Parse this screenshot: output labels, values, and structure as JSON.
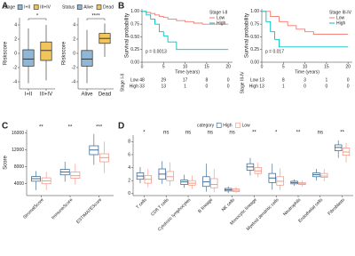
{
  "panel_labels": [
    "A",
    "B",
    "C",
    "D"
  ],
  "chart_data": [
    {
      "type": "box",
      "legend": "top",
      "legend_title": "Stage",
      "categories": [
        "I+II",
        "III+IV"
      ],
      "colors": [
        "#8fb8d8",
        "#f2c55c"
      ],
      "ylabel": "Riskscore",
      "ylim": [
        -5,
        5
      ],
      "yticks": [
        -4,
        -2,
        0,
        2,
        4
      ],
      "significance": [
        "*"
      ],
      "boxes": [
        {
          "min": -4.2,
          "q1": -1.8,
          "median": -0.8,
          "q3": 0.5,
          "max": 3.5
        },
        {
          "min": -3.8,
          "q1": -1,
          "median": 0.4,
          "q3": 1.6,
          "max": 4
        }
      ]
    },
    {
      "type": "box",
      "legend": "top",
      "legend_title": "Status",
      "categories": [
        "Alive",
        "Dead"
      ],
      "colors": [
        "#8fb8d8",
        "#f2c55c"
      ],
      "ylabel": "Riskscore",
      "ylim": [
        -5,
        5
      ],
      "yticks": [
        -4,
        -2,
        0,
        2,
        4
      ],
      "significance": [
        "****"
      ],
      "boxes": [
        {
          "min": -4.2,
          "q1": -1.8,
          "median": -0.8,
          "q3": 0.4,
          "max": 3.3
        },
        {
          "min": -0.5,
          "q1": 1.4,
          "median": 2.1,
          "q3": 2.8,
          "max": 4.2
        }
      ]
    },
    {
      "type": "km",
      "legend_title": "Stage I-II",
      "ylabel": "Survival probability",
      "xlabel": "Time (years)",
      "p_text": "p = 0.0013",
      "xlim": [
        0,
        21
      ],
      "xticks": [
        0,
        5,
        10,
        15,
        20
      ],
      "ylim": [
        0,
        1.05
      ],
      "yticks": [
        {
          "value": 0,
          "label": "0.00"
        },
        {
          "value": 0.25,
          "label": "0.25"
        },
        {
          "value": 0.5,
          "label": "0.50"
        },
        {
          "value": 0.75,
          "label": "0.75"
        },
        {
          "value": 1,
          "label": "1.00"
        }
      ],
      "series": [
        {
          "name": "Low",
          "color": "#f8766d",
          "x": [
            0,
            1,
            2,
            3,
            4,
            5,
            6,
            8,
            10,
            12,
            14,
            20
          ],
          "values": [
            1,
            0.98,
            0.96,
            0.93,
            0.9,
            0.88,
            0.85,
            0.82,
            0.8,
            0.77,
            0.75,
            0.75
          ],
          "at_risk": [
            48,
            29,
            17,
            8,
            0
          ]
        },
        {
          "name": "High",
          "color": "#00bfc4",
          "x": [
            0,
            1,
            2,
            3,
            4,
            5,
            6,
            8,
            20
          ],
          "values": [
            1,
            0.93,
            0.85,
            0.75,
            0.6,
            0.52,
            0.4,
            0.25,
            0.25
          ],
          "at_risk": [
            33,
            13,
            1,
            0,
            0
          ]
        }
      ]
    },
    {
      "type": "km",
      "legend_title": "Stage III-IV",
      "ylabel": "Survival probability",
      "xlabel": "Time (years)",
      "p_text": "p = 0.017",
      "xlim": [
        0,
        21
      ],
      "xticks": [
        0,
        5,
        10,
        15,
        20
      ],
      "ylim": [
        0,
        1.05
      ],
      "yticks": [
        {
          "value": 0,
          "label": "0.00"
        },
        {
          "value": 0.25,
          "label": "0.25"
        },
        {
          "value": 0.5,
          "label": "0.50"
        },
        {
          "value": 0.75,
          "label": "0.75"
        },
        {
          "value": 1,
          "label": "1.00"
        }
      ],
      "series": [
        {
          "name": "Low",
          "color": "#f8766d",
          "x": [
            0,
            2,
            4,
            6,
            8,
            10,
            12,
            20
          ],
          "values": [
            1,
            0.9,
            0.8,
            0.72,
            0.65,
            0.6,
            0.55,
            0.55
          ],
          "at_risk": [
            13,
            8,
            3,
            1,
            0
          ]
        },
        {
          "name": "High",
          "color": "#00bfc4",
          "x": [
            0,
            1,
            2,
            3,
            4,
            5,
            20
          ],
          "values": [
            1,
            0.8,
            0.6,
            0.45,
            0.3,
            0.3,
            0.3
          ],
          "at_risk": [
            13,
            1,
            0,
            0,
            0
          ]
        }
      ]
    },
    {
      "type": "box",
      "categories": [
        "StromalScore",
        "ImmuneScore",
        "ESTIMATEScore"
      ],
      "ylabel": "Score",
      "ylim": [
        1200,
        16800
      ],
      "yticks": [
        4000,
        8000,
        12000,
        16000
      ],
      "significance": [
        "**",
        "**",
        "***"
      ],
      "series": [
        {
          "name": "High",
          "color": "#2c5d8a",
          "boxes": [
            {
              "min": 2500,
              "q1": 4600,
              "median": 5200,
              "q3": 5700,
              "max": 7000
            },
            {
              "min": 4500,
              "q1": 6100,
              "median": 6800,
              "q3": 7400,
              "max": 9200
            },
            {
              "min": 8500,
              "q1": 10900,
              "median": 12000,
              "q3": 13000,
              "max": 15800
            }
          ]
        },
        {
          "name": "Low",
          "color": "#f08f7b",
          "boxes": [
            {
              "min": 2500,
              "q1": 4000,
              "median": 4700,
              "q3": 5400,
              "max": 6800
            },
            {
              "min": 3800,
              "q1": 5300,
              "median": 5900,
              "q3": 6800,
              "max": 8700
            },
            {
              "min": 6500,
              "q1": 9200,
              "median": 10200,
              "q3": 11100,
              "max": 14000
            }
          ]
        }
      ]
    },
    {
      "type": "box",
      "legend": "top",
      "legend_title": "category",
      "categories": [
        "T cells",
        "CD8 T cells",
        "Cytotoxic lymphocytes",
        "B lineage",
        "NK cells",
        "Monocytic lineage",
        "Myeloid dendritic cells",
        "Neutrophils",
        "Endothelial cells",
        "Fibroblasts"
      ],
      "ylim": [
        -0.3,
        9
      ],
      "yticks": [
        0,
        2,
        4,
        6,
        8
      ],
      "significance": [
        "*",
        "ns",
        "ns",
        "ns",
        "ns",
        "**",
        "*",
        "**",
        "ns",
        "**"
      ],
      "series": [
        {
          "name": "High",
          "color": "#2c5d8a",
          "boxes": [
            {
              "min": 1.6,
              "q1": 2.2,
              "median": 2.7,
              "q3": 3.2,
              "max": 4.1
            },
            {
              "min": 1.5,
              "q1": 2.2,
              "median": 3,
              "q3": 3.8,
              "max": 5
            },
            {
              "min": 0.9,
              "q1": 1.4,
              "median": 1.8,
              "q3": 2.1,
              "max": 2.9
            },
            {
              "min": 0.3,
              "q1": 1.1,
              "median": 1.8,
              "q3": 2.6,
              "max": 4.6
            },
            {
              "min": 0.1,
              "q1": 0.4,
              "median": 0.6,
              "q3": 0.8,
              "max": 1.1
            },
            {
              "min": 2.8,
              "q1": 3.6,
              "median": 4.1,
              "q3": 4.6,
              "max": 5.5
            },
            {
              "min": 0.6,
              "q1": 1.7,
              "median": 2.4,
              "q3": 3.1,
              "max": 4.6
            },
            {
              "min": 1.2,
              "q1": 1.5,
              "median": 1.7,
              "q3": 1.9,
              "max": 2.2
            },
            {
              "min": 2,
              "q1": 2.6,
              "median": 2.9,
              "q3": 3.2,
              "max": 3.8
            },
            {
              "min": 5.5,
              "q1": 6.6,
              "median": 7.1,
              "q3": 7.5,
              "max": 8.2
            }
          ]
        },
        {
          "name": "Low",
          "color": "#f08f7b",
          "boxes": [
            {
              "min": 1,
              "q1": 1.6,
              "median": 2.2,
              "q3": 2.8,
              "max": 3.8
            },
            {
              "min": 1.2,
              "q1": 2,
              "median": 2.6,
              "q3": 3.4,
              "max": 4.8
            },
            {
              "min": 0.7,
              "q1": 1.3,
              "median": 1.6,
              "q3": 2,
              "max": 2.8
            },
            {
              "min": 0.2,
              "q1": 0.9,
              "median": 1.4,
              "q3": 2.3,
              "max": 3.8
            },
            {
              "min": 0.1,
              "q1": 0.3,
              "median": 0.5,
              "q3": 0.7,
              "max": 1
            },
            {
              "min": 2.5,
              "q1": 3.1,
              "median": 3.5,
              "q3": 4,
              "max": 4.8
            },
            {
              "min": 0.5,
              "q1": 1.3,
              "median": 1.9,
              "q3": 2.6,
              "max": 3.9
            },
            {
              "min": 1.1,
              "q1": 1.4,
              "median": 1.5,
              "q3": 1.7,
              "max": 2
            },
            {
              "min": 1.9,
              "q1": 2.5,
              "median": 2.7,
              "q3": 3.1,
              "max": 3.8
            },
            {
              "min": 4.8,
              "q1": 5.9,
              "median": 6.4,
              "q3": 7,
              "max": 7.8
            }
          ]
        }
      ]
    }
  ]
}
